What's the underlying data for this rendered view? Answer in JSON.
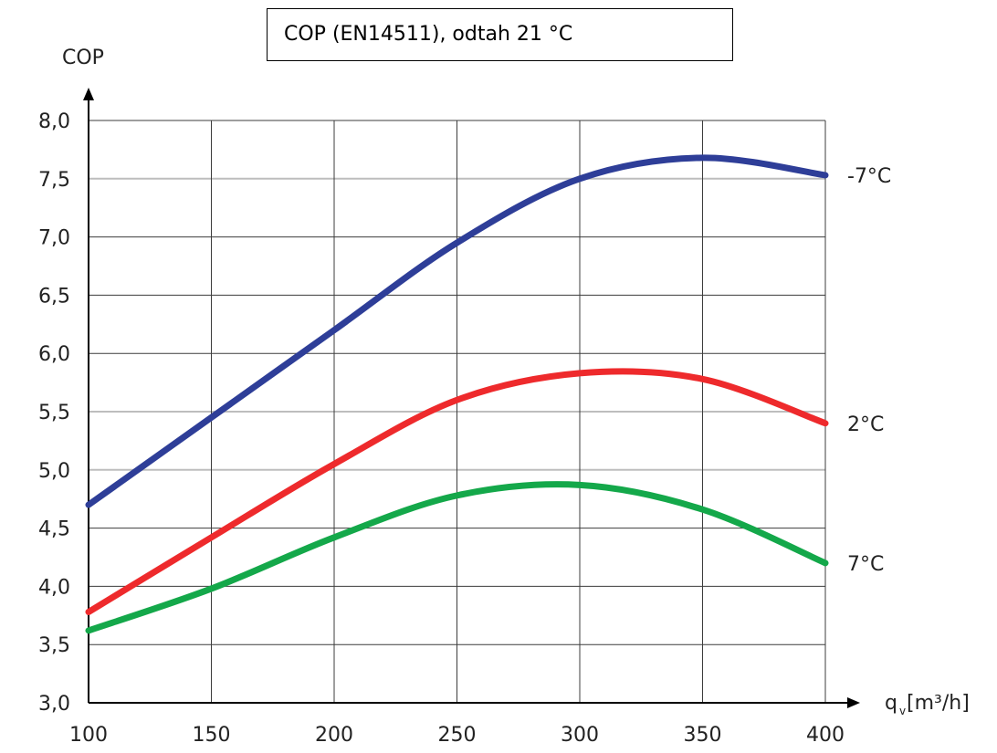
{
  "chart_data": {
    "type": "line",
    "title": "COP (EN14511), odtah 21 °C",
    "ylabel": "COP",
    "xlabel_main": "q",
    "xlabel_sub": "v",
    "xlabel_unit": "[m³/h]",
    "xlim": [
      100,
      400
    ],
    "ylim": [
      3.0,
      8.0
    ],
    "x_ticks": [
      "100",
      "150",
      "200",
      "250",
      "300",
      "350",
      "400"
    ],
    "y_ticks": [
      "3,0",
      "3,5",
      "4,0",
      "4,5",
      "5,0",
      "5,5",
      "6,0",
      "6,5",
      "7,0",
      "7,5",
      "8,0"
    ],
    "x": [
      100,
      150,
      200,
      250,
      300,
      350,
      400
    ],
    "series": [
      {
        "name": "-7°C",
        "color": "#2e3e98",
        "values": [
          4.7,
          5.45,
          6.2,
          6.95,
          7.5,
          7.68,
          7.53
        ]
      },
      {
        "name": "2°C",
        "color": "#ee2a2c",
        "values": [
          3.78,
          4.42,
          5.05,
          5.6,
          5.83,
          5.78,
          5.4
        ]
      },
      {
        "name": "7°C",
        "color": "#14a84a",
        "values": [
          3.62,
          3.98,
          4.42,
          4.78,
          4.87,
          4.66,
          4.2
        ]
      }
    ],
    "grid": true,
    "legend": "right"
  }
}
